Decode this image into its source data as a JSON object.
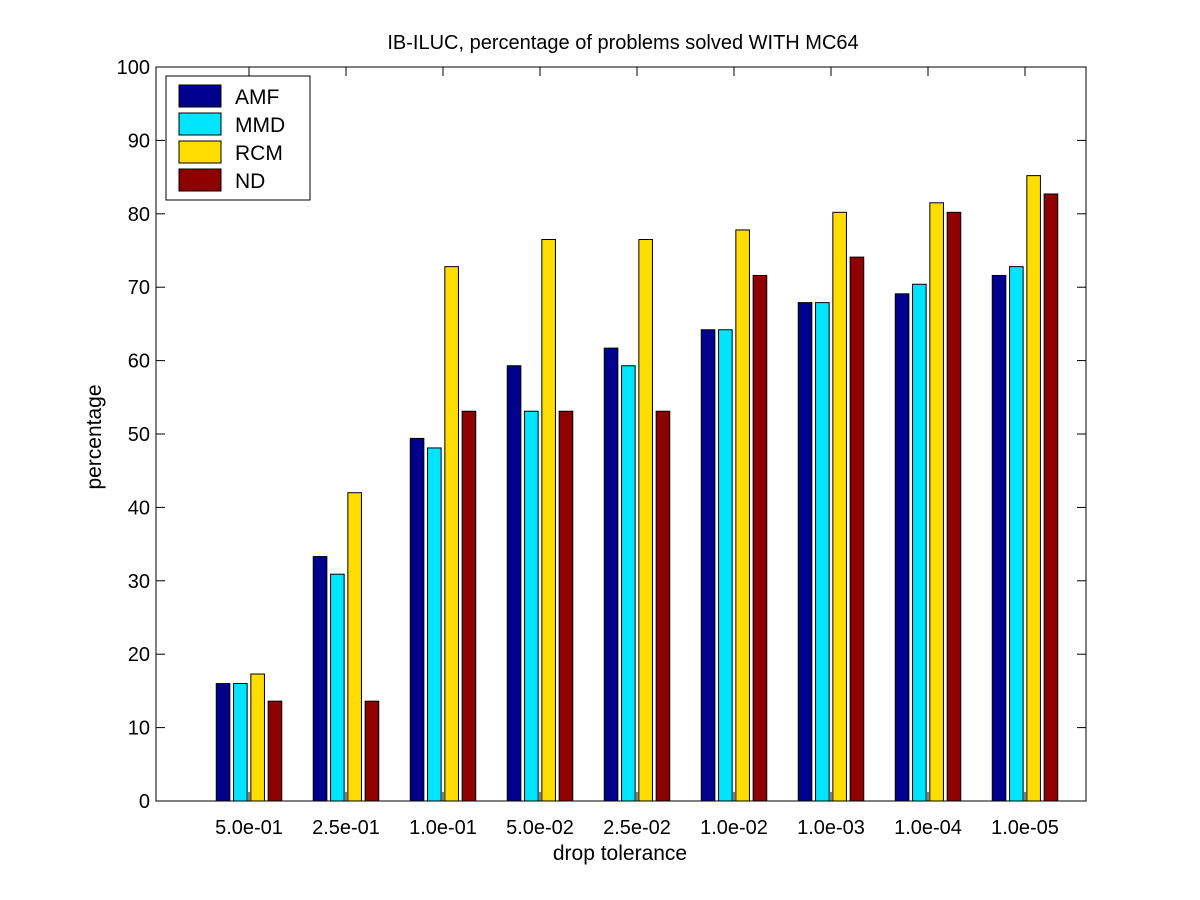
{
  "chart_data": {
    "type": "bar",
    "title": "IB-ILUC, percentage of problems solved WITH MC64",
    "xlabel": "drop tolerance",
    "ylabel": "percentage",
    "categories": [
      "5.0e-01",
      "2.5e-01",
      "1.0e-01",
      "5.0e-02",
      "2.5e-02",
      "1.0e-02",
      "1.0e-03",
      "1.0e-04",
      "1.0e-05"
    ],
    "ylim": [
      0,
      100
    ],
    "yticks": [
      0,
      10,
      20,
      30,
      40,
      50,
      60,
      70,
      80,
      90,
      100
    ],
    "grid": false,
    "legend_position": "top-left",
    "series": [
      {
        "name": "AMF",
        "color": "#00008f",
        "values": [
          16.0,
          33.3,
          49.4,
          59.3,
          61.7,
          64.2,
          67.9,
          69.1,
          71.6
        ]
      },
      {
        "name": "MMD",
        "color": "#00e5ff",
        "values": [
          16.0,
          30.9,
          48.1,
          53.1,
          59.3,
          64.2,
          67.9,
          70.4,
          72.8
        ]
      },
      {
        "name": "RCM",
        "color": "#ffdd00",
        "values": [
          17.3,
          42.0,
          72.8,
          76.5,
          76.5,
          77.8,
          80.2,
          81.5,
          85.2
        ]
      },
      {
        "name": " ND",
        "color": "#8f0000",
        "values": [
          13.6,
          13.6,
          53.1,
          53.1,
          53.1,
          71.6,
          74.1,
          80.2,
          82.7
        ]
      }
    ]
  }
}
